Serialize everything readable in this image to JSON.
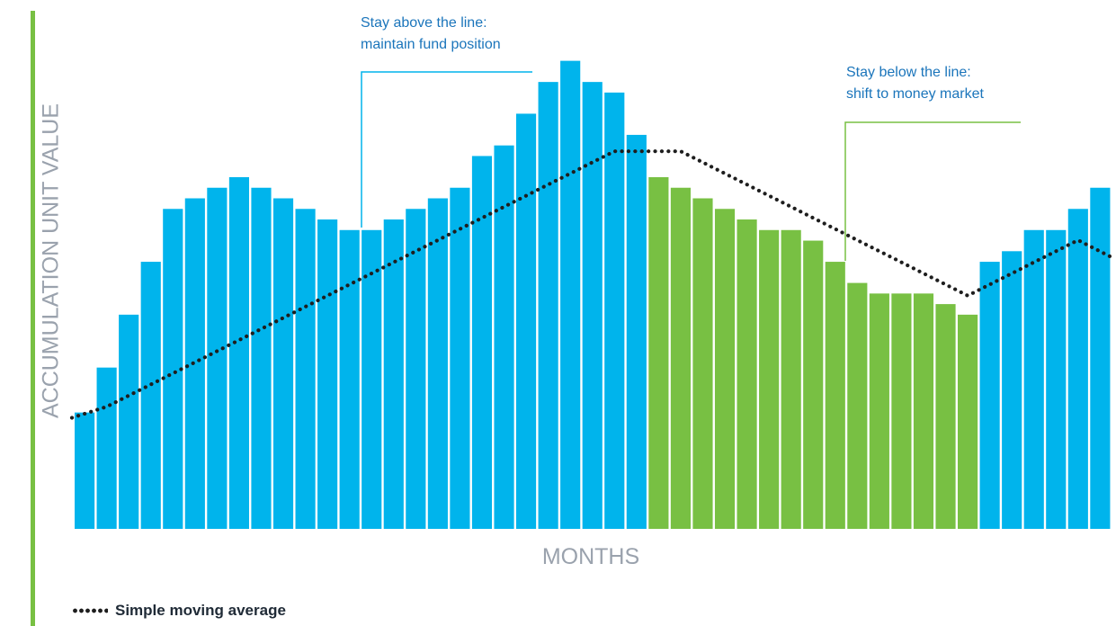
{
  "colors": {
    "above_bar": "#00b4ec",
    "below_bar": "#78c043",
    "moving_average": "#1e1e1e",
    "axis_label": "#9aa2ad",
    "annotation_above": "#1b75bb",
    "annotation_below": "#1b75bb",
    "left_rule": "#78c043"
  },
  "annotations": {
    "above": {
      "line1": "Stay above the line:",
      "line2": "maintain fund position"
    },
    "below": {
      "line1": "Stay below the line:",
      "line2": "shift to money market"
    }
  },
  "legend": {
    "label": "Simple moving average"
  },
  "chart_data": {
    "type": "bar",
    "title": "",
    "xlabel": "MONTHS",
    "ylabel": "ACCUMULATION UNIT VALUE",
    "ylim": [
      0,
      100
    ],
    "grid": false,
    "legend_position": "bottom-left",
    "series": [
      {
        "values": [
          22,
          30.5,
          40.5,
          50.5,
          60.5,
          62.5,
          64.5,
          66.5,
          64.5,
          62.5,
          60.5,
          58.5,
          56.5,
          56.5,
          58.5,
          60.5,
          62.5,
          64.5,
          70.5,
          72.5,
          78.5,
          84.5,
          88.5,
          84.5,
          82.5,
          74.5,
          66.5,
          64.5,
          62.5,
          60.5,
          58.5,
          56.5,
          56.5,
          54.5,
          50.5,
          46.5,
          44.5,
          44.5,
          44.5,
          42.5,
          40.5,
          50.5,
          52.5,
          56.5,
          56.5,
          60.5,
          64.5
        ]
      },
      {
        "name": "Simple moving average",
        "type": "line",
        "values": [
          21,
          23.1,
          25.2,
          27.3,
          29.4,
          31.5,
          33.6,
          35.7,
          37.8,
          39.9,
          42,
          44.1,
          46.2,
          48.3,
          50.4,
          52.5,
          54.6,
          56.7,
          58.8,
          60.9,
          63,
          65.1,
          67.2,
          69.3,
          71.4,
          71.4,
          71.4,
          71.4,
          69.3,
          67.2,
          65.1,
          63,
          60.9,
          58.8,
          56.7,
          54.6,
          52.5,
          50.4,
          48.3,
          46.2,
          44.1,
          46.2,
          48.3,
          50.4,
          52.5,
          54.6,
          51.5
        ]
      }
    ],
    "regions": [
      {
        "label": "Stay above the line: maintain fund position",
        "color": "#00b4ec"
      },
      {
        "label": "Stay below the line: shift to money market",
        "color": "#78c043"
      }
    ]
  }
}
